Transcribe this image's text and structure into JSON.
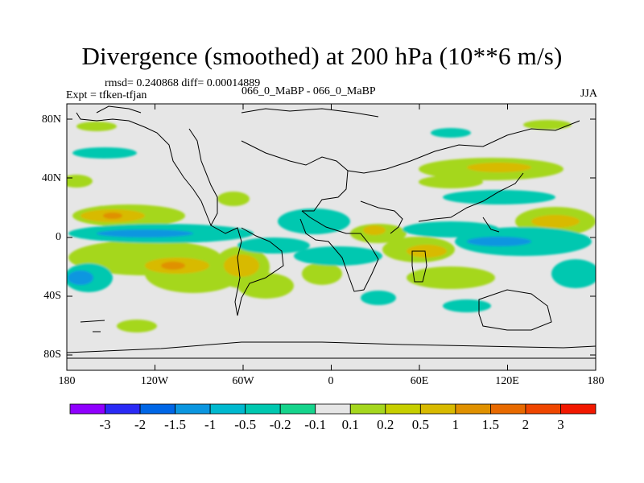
{
  "title": "Divergence (smoothed) at 200 hPa (10**6 m/s)",
  "stats_line": "rmsd= 0.240868 diff= 0.00014889",
  "case_line": "066_0_MaBP - 066_0_MaBP",
  "expt_line": "Expt = tfken-tfjan",
  "season": "JJA",
  "map": {
    "projection": "cylindrical equidistant",
    "lon_range": [
      -180,
      180
    ],
    "lat_range": [
      -90,
      90
    ],
    "y_tick_labels": [
      "80N",
      "40N",
      "0",
      "40S",
      "80S"
    ],
    "x_tick_labels": [
      "180",
      "120W",
      "60W",
      "0",
      "60E",
      "120E",
      "180"
    ],
    "background_color": "#e6e6e6",
    "coastline_color": "#000000"
  },
  "colorbar": {
    "labels": [
      "-3",
      "-2",
      "-1.5",
      "-1",
      "-0.5",
      "-0.2",
      "-0.1",
      "0.1",
      "0.2",
      "0.5",
      "1",
      "1.5",
      "2",
      "3"
    ],
    "colors": [
      "#8f00ff",
      "#2a2af5",
      "#0066e6",
      "#0b96e0",
      "#00b9cf",
      "#00c8b0",
      "#16d48c",
      "#e6e6e6",
      "#a5d71e",
      "#c7cf00",
      "#d8ba00",
      "#e09100",
      "#e86a00",
      "#ef4600",
      "#f21800"
    ]
  }
}
